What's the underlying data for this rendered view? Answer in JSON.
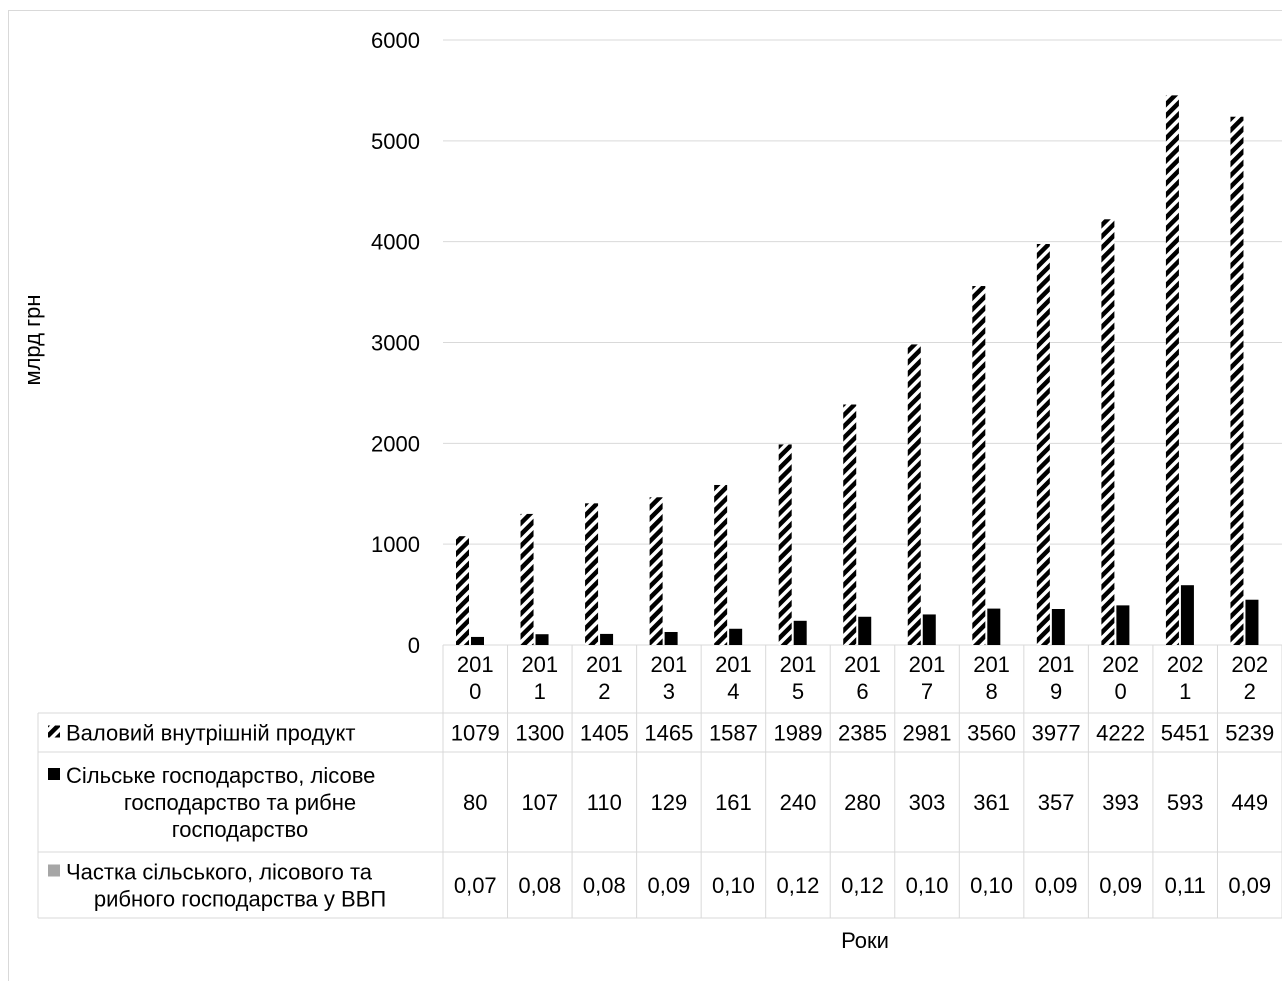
{
  "chart_data": {
    "type": "bar",
    "ylabel": "млрд грн",
    "xlabel": "Роки",
    "ylim": [
      0,
      6000
    ],
    "yticks": [
      0,
      1000,
      2000,
      3000,
      4000,
      5000,
      6000
    ],
    "grid": true,
    "legend": "in data table (left column)",
    "categories": [
      "2010",
      "2011",
      "2012",
      "2013",
      "2014",
      "2015",
      "2016",
      "2017",
      "2018",
      "2019",
      "2020",
      "2021",
      "2022"
    ],
    "category_lines": [
      [
        "201",
        "0"
      ],
      [
        "201",
        "1"
      ],
      [
        "201",
        "2"
      ],
      [
        "201",
        "3"
      ],
      [
        "201",
        "4"
      ],
      [
        "201",
        "5"
      ],
      [
        "201",
        "6"
      ],
      [
        "201",
        "7"
      ],
      [
        "201",
        "8"
      ],
      [
        "201",
        "9"
      ],
      [
        "202",
        "0"
      ],
      [
        "202",
        "1"
      ],
      [
        "202",
        "2"
      ]
    ],
    "series": [
      {
        "name": "Валовий внутрішній продукт",
        "name_lines": [
          "Валовий внутрішній продукт"
        ],
        "values": [
          1079,
          1300,
          1405,
          1465,
          1587,
          1989,
          2385,
          2981,
          3560,
          3977,
          4222,
          5451,
          5239
        ],
        "labels": [
          "1079",
          "1300",
          "1405",
          "1465",
          "1587",
          "1989",
          "2385",
          "2981",
          "3560",
          "3977",
          "4222",
          "5451",
          "5239"
        ],
        "style": "hatched",
        "color": "#000000"
      },
      {
        "name": "Сільське господарство, лісове господарство та рибне господарство",
        "name_lines": [
          "Сільське господарство, лісове",
          "господарство та рибне",
          "господарство"
        ],
        "values": [
          80,
          107,
          110,
          129,
          161,
          240,
          280,
          303,
          361,
          357,
          393,
          593,
          449
        ],
        "labels": [
          "80",
          "107",
          "110",
          "129",
          "161",
          "240",
          "280",
          "303",
          "361",
          "357",
          "393",
          "593",
          "449"
        ],
        "style": "solid",
        "color": "#000000"
      },
      {
        "name": "Частка сільського, лісового та рибного господарства у ВВП",
        "name_lines": [
          "Частка сільського, лісового та",
          "рибного господарства у ВВП"
        ],
        "values": [
          0.07,
          0.08,
          0.08,
          0.09,
          0.1,
          0.12,
          0.12,
          0.1,
          0.1,
          0.09,
          0.09,
          0.11,
          0.09
        ],
        "labels": [
          "0,07",
          "0,08",
          "0,08",
          "0,09",
          "0,10",
          "0,12",
          "0,12",
          "0,10",
          "0,10",
          "0,09",
          "0,09",
          "0,11",
          "0,09"
        ],
        "style": "solid",
        "color": "#a6a6a6"
      }
    ]
  }
}
